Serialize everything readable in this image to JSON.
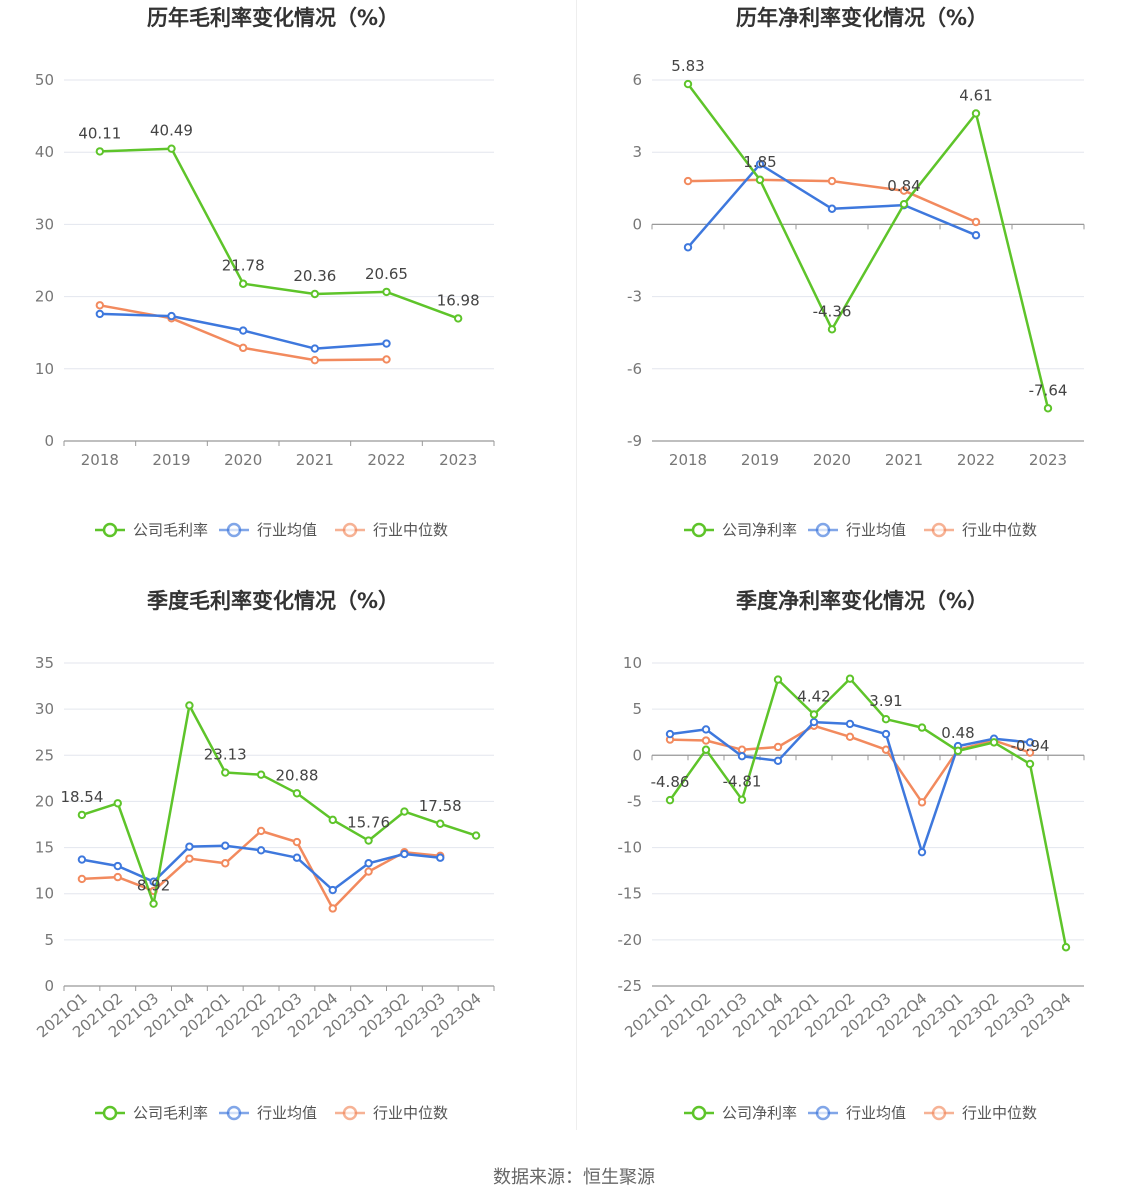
{
  "colors": {
    "company": "#5ec42a",
    "avg": "#3e78dd",
    "median": "#f28a5e"
  },
  "footer": "数据来源：恒生聚源",
  "chart_data": [
    {
      "id": "annual-gross",
      "type": "line",
      "title": "历年毛利率变化情况（%）",
      "categories": [
        "2018",
        "2019",
        "2020",
        "2021",
        "2022",
        "2023"
      ],
      "ylim": [
        0,
        50
      ],
      "yticks": [
        0,
        10,
        20,
        30,
        40,
        50
      ],
      "series": [
        {
          "name": "公司毛利率",
          "key": "company",
          "values": [
            40.11,
            40.49,
            21.78,
            20.36,
            20.65,
            16.98
          ],
          "labels": [
            "40.11",
            "40.49",
            "21.78",
            "20.36",
            "20.65",
            "16.98"
          ]
        },
        {
          "name": "行业均值",
          "key": "avg",
          "values": [
            17.6,
            17.3,
            15.3,
            12.8,
            13.5,
            null
          ]
        },
        {
          "name": "行业中位数",
          "key": "median",
          "values": [
            18.8,
            17.0,
            12.9,
            11.2,
            11.3,
            null
          ]
        }
      ]
    },
    {
      "id": "annual-net",
      "type": "line",
      "title": "历年净利率变化情况（%）",
      "categories": [
        "2018",
        "2019",
        "2020",
        "2021",
        "2022",
        "2023"
      ],
      "ylim": [
        -9,
        6
      ],
      "yticks": [
        -9,
        -6,
        -3,
        0,
        3,
        6
      ],
      "series": [
        {
          "name": "公司净利率",
          "key": "company",
          "values": [
            5.83,
            1.85,
            -4.36,
            0.84,
            4.61,
            -7.64
          ],
          "labels": [
            "5.83",
            "1.85",
            "-4.36",
            "0.84",
            "4.61",
            "-7.64"
          ]
        },
        {
          "name": "行业均值",
          "key": "avg",
          "values": [
            -0.95,
            2.5,
            0.65,
            0.8,
            -0.45,
            null
          ]
        },
        {
          "name": "行业中位数",
          "key": "median",
          "values": [
            1.8,
            1.85,
            1.8,
            1.4,
            0.1,
            null
          ]
        }
      ]
    },
    {
      "id": "quarterly-gross",
      "type": "line",
      "title": "季度毛利率变化情况（%）",
      "categories": [
        "2021Q1",
        "2021Q2",
        "2021Q3",
        "2021Q4",
        "2022Q1",
        "2022Q2",
        "2022Q3",
        "2022Q4",
        "2023Q1",
        "2023Q2",
        "2023Q3",
        "2023Q4"
      ],
      "ylim": [
        0,
        35
      ],
      "yticks": [
        0,
        5,
        10,
        15,
        20,
        25,
        30,
        35
      ],
      "series": [
        {
          "name": "公司毛利率",
          "key": "company",
          "values": [
            18.54,
            19.8,
            8.92,
            30.4,
            23.13,
            22.9,
            20.88,
            18.0,
            15.76,
            18.9,
            17.58,
            16.3
          ],
          "labels": [
            "18.54",
            null,
            "8.92",
            null,
            "23.13",
            null,
            "20.88",
            null,
            "15.76",
            null,
            "17.58",
            null
          ]
        },
        {
          "name": "行业均值",
          "key": "avg",
          "values": [
            13.7,
            13.0,
            11.3,
            15.1,
            15.2,
            14.7,
            13.9,
            10.4,
            13.3,
            14.3,
            13.9,
            null
          ]
        },
        {
          "name": "行业中位数",
          "key": "median",
          "values": [
            11.6,
            11.8,
            10.3,
            13.8,
            13.3,
            16.8,
            15.6,
            8.4,
            12.4,
            14.5,
            14.1,
            null
          ]
        }
      ]
    },
    {
      "id": "quarterly-net",
      "type": "line",
      "title": "季度净利率变化情况（%）",
      "categories": [
        "2021Q1",
        "2021Q2",
        "2021Q3",
        "2021Q4",
        "2022Q1",
        "2022Q2",
        "2022Q3",
        "2022Q4",
        "2023Q1",
        "2023Q2",
        "2023Q3",
        "2023Q4"
      ],
      "ylim": [
        -25,
        10
      ],
      "yticks": [
        -25,
        -20,
        -15,
        -10,
        -5,
        0,
        5,
        10
      ],
      "series": [
        {
          "name": "公司净利率",
          "key": "company",
          "values": [
            -4.86,
            0.6,
            -4.81,
            8.2,
            4.42,
            8.3,
            3.91,
            3.0,
            0.48,
            1.4,
            -0.94,
            -20.8
          ],
          "labels": [
            "-4.86",
            null,
            "-4.81",
            null,
            "4.42",
            null,
            "3.91",
            null,
            "0.48",
            null,
            "-0.94",
            null
          ]
        },
        {
          "name": "行业均值",
          "key": "avg",
          "values": [
            2.3,
            2.8,
            -0.1,
            -0.6,
            3.6,
            3.4,
            2.3,
            -10.5,
            1.0,
            1.8,
            1.4,
            null
          ]
        },
        {
          "name": "行业中位数",
          "key": "median",
          "values": [
            1.7,
            1.6,
            0.6,
            0.9,
            3.2,
            2.0,
            0.6,
            -5.1,
            0.6,
            1.6,
            0.3,
            null
          ]
        }
      ]
    }
  ]
}
